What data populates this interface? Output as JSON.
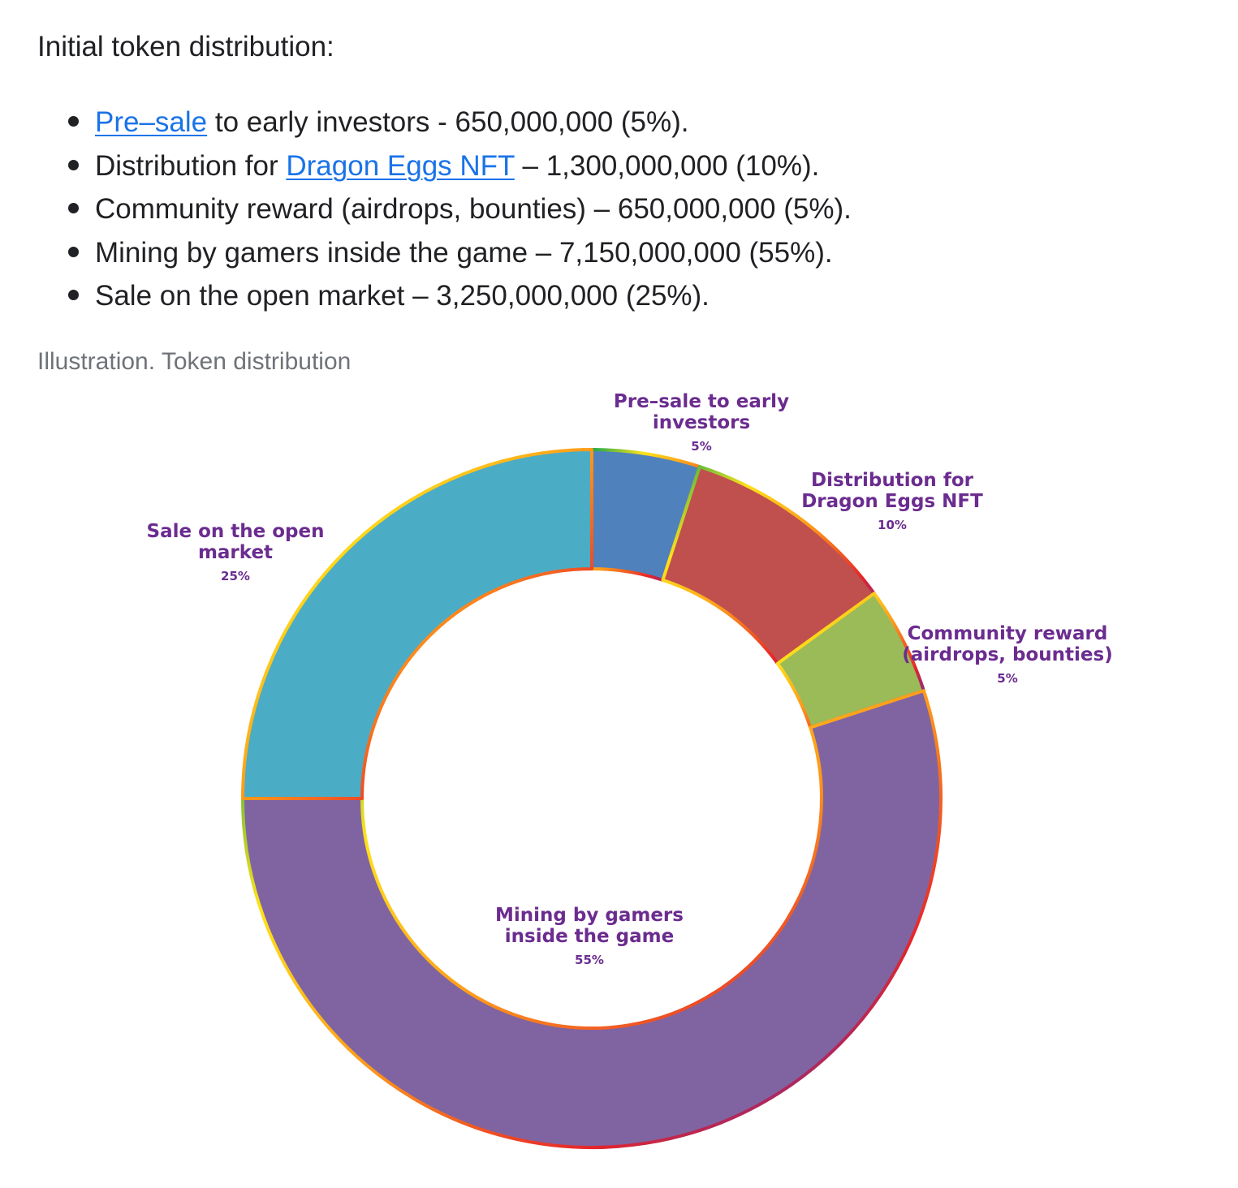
{
  "intro": {
    "heading": "Initial token distribution:"
  },
  "list": {
    "items": [
      {
        "link": "Pre–sale",
        "before": "",
        "after": " to early investors - 650,000,000 (5%)."
      },
      {
        "before": "Distribution for ",
        "link": "Dragon Eggs NFT",
        "after": " – 1,300,000,000 (10%)."
      },
      {
        "before": "Community reward (airdrops, bounties) – 650,000,000 (5%).",
        "link": "",
        "after": ""
      },
      {
        "before": "Mining by gamers inside the game – 7,150,000,000 (55%).",
        "link": "",
        "after": ""
      },
      {
        "before": "Sale on the open market – 3,250,000,000 (25%).",
        "link": "",
        "after": ""
      }
    ]
  },
  "caption": "Illustration. Token distribution",
  "colors": {
    "link": "#1a73e8",
    "label": "#6b2c8f"
  },
  "chart_data": {
    "type": "pie",
    "donut": true,
    "title": "",
    "slices": [
      {
        "label_lines": [
          "Pre–sale to early",
          "investors"
        ],
        "pct_label": "5%",
        "value": 5,
        "color": "#4f81bd"
      },
      {
        "label_lines": [
          "Distribution for",
          "Dragon Eggs NFT"
        ],
        "pct_label": "10%",
        "value": 10,
        "color": "#c0504d"
      },
      {
        "label_lines": [
          "Community reward",
          "(airdrops, bounties)"
        ],
        "pct_label": "5%",
        "value": 5,
        "color": "#9bbb59"
      },
      {
        "label_lines": [
          "Mining by gamers",
          "inside the game"
        ],
        "pct_label": "55%",
        "value": 55,
        "color": "#8064a2"
      },
      {
        "label_lines": [
          "Sale on the open",
          "market"
        ],
        "pct_label": "25%",
        "value": 25,
        "color": "#4bacc6"
      }
    ]
  }
}
